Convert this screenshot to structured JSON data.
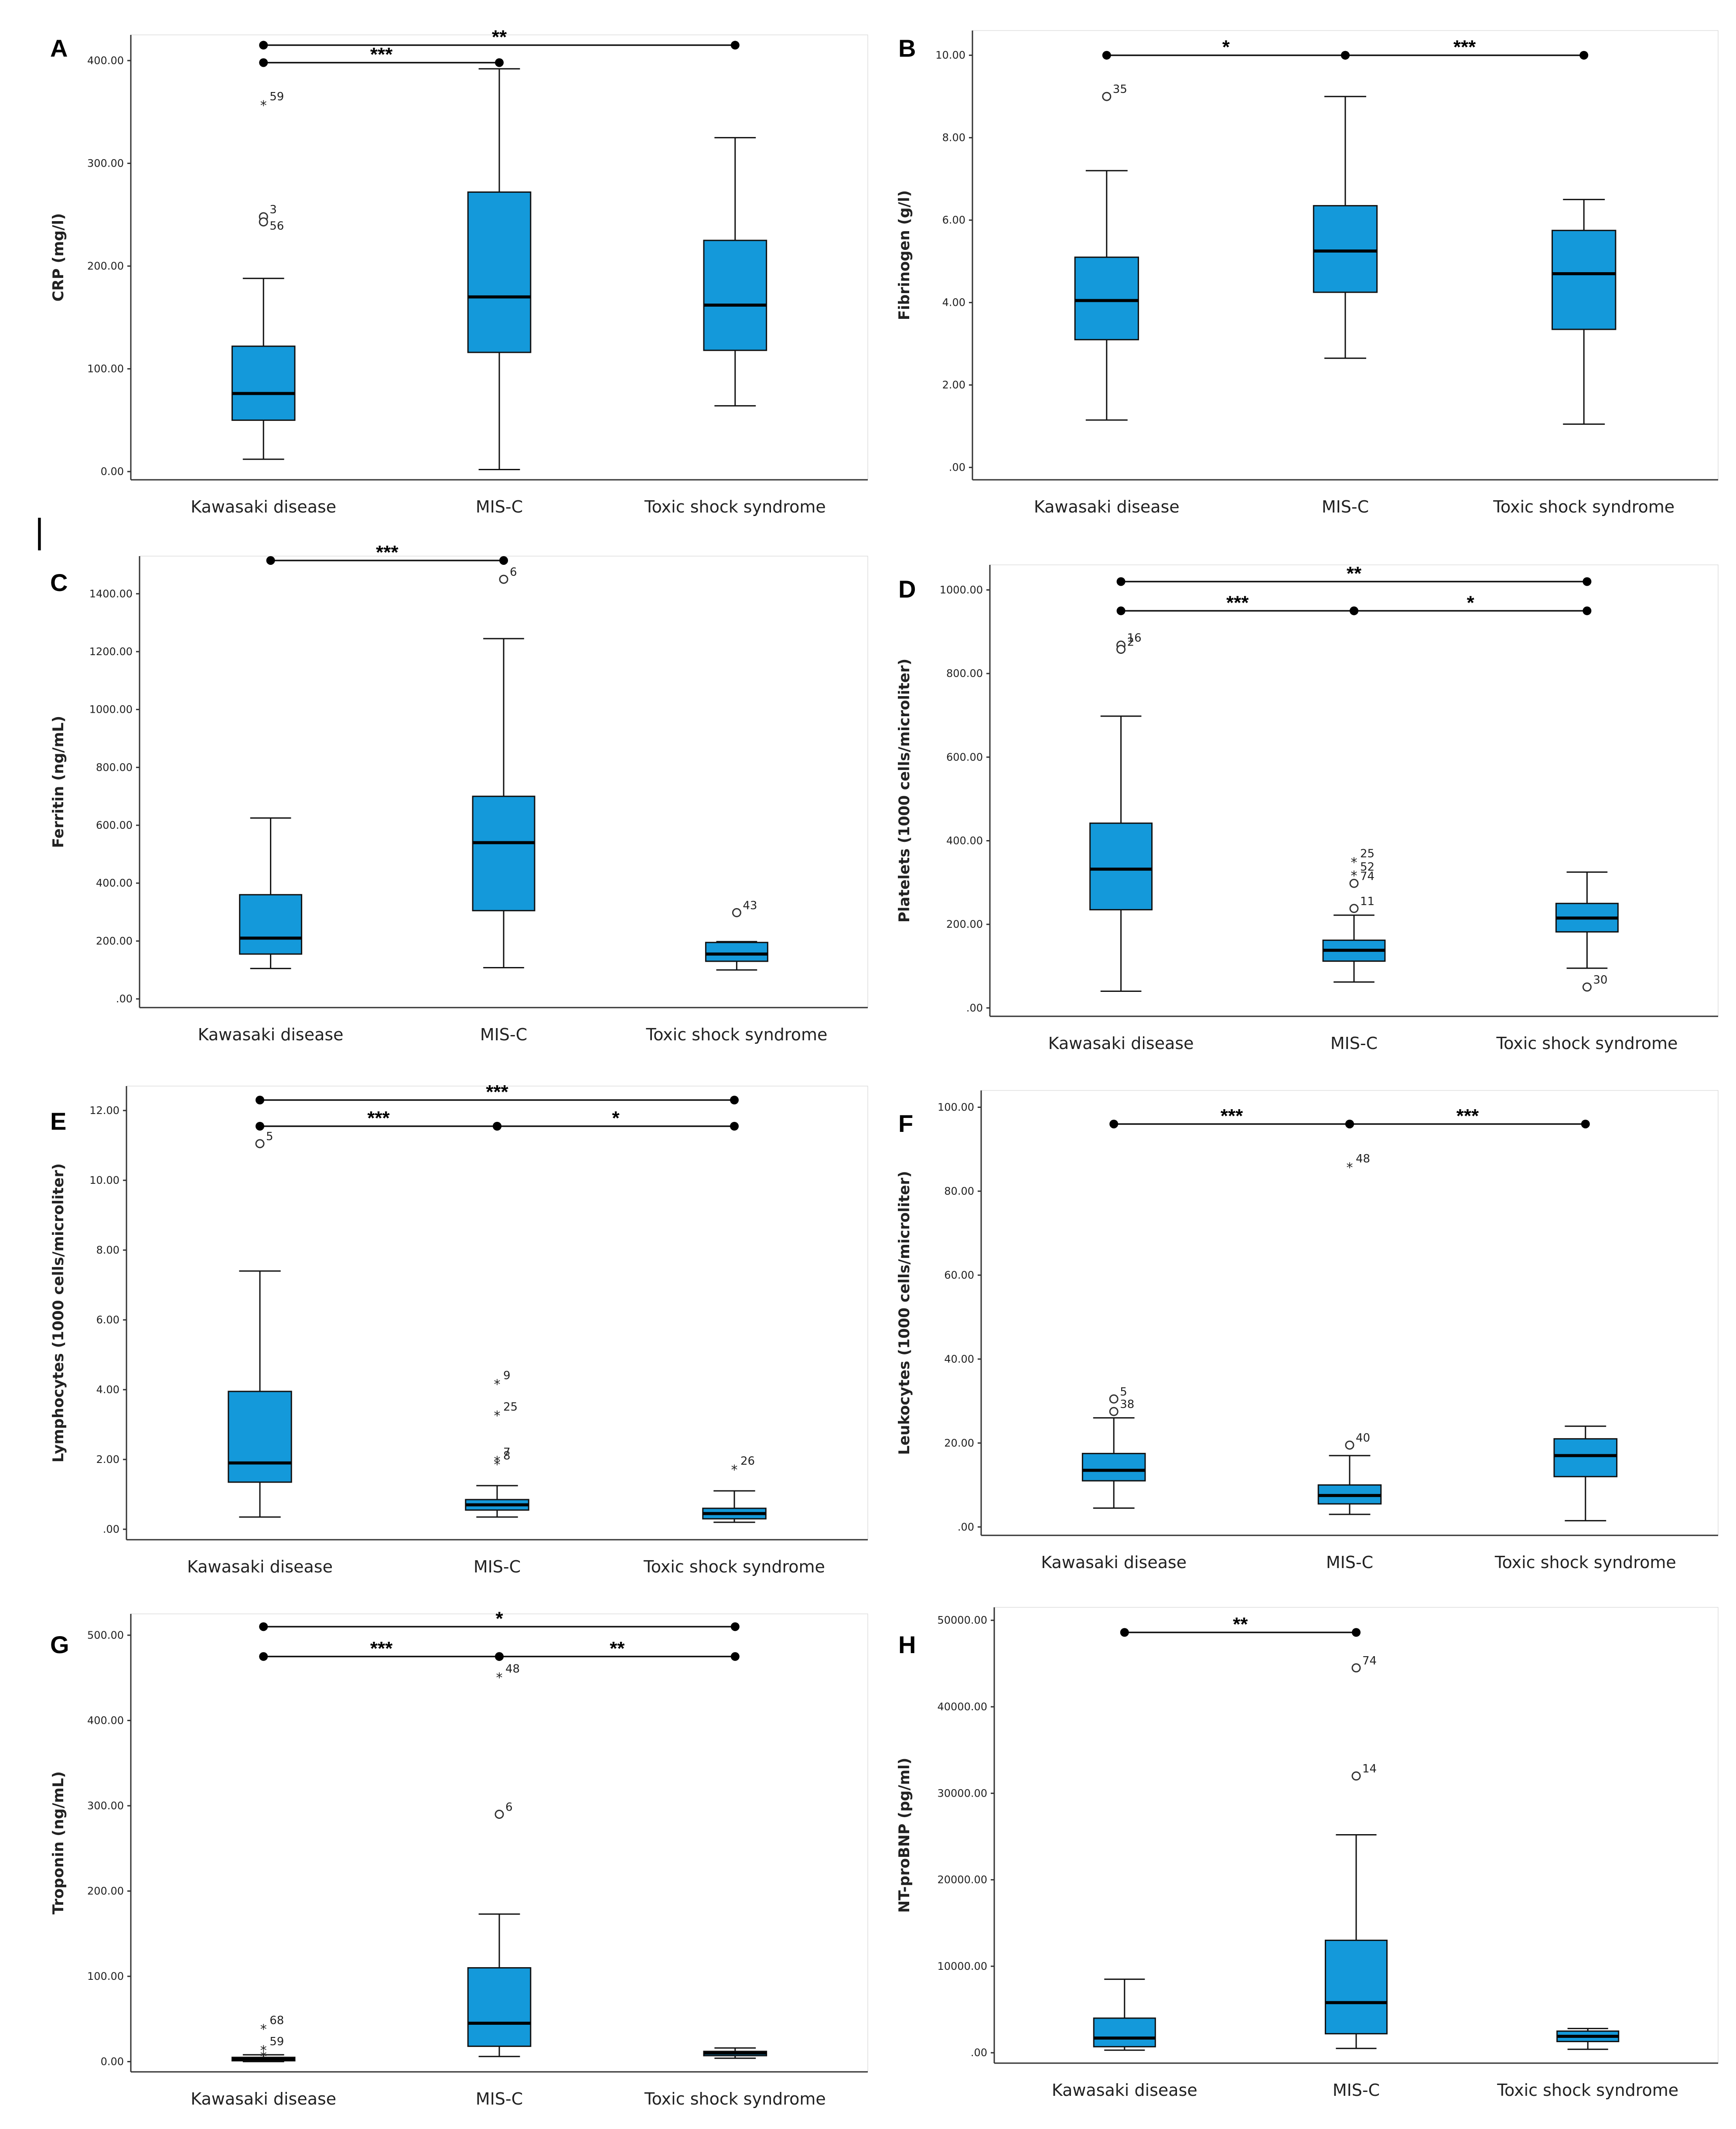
{
  "figure_marker": "|",
  "chart_data": [
    {
      "id": "A",
      "type": "box",
      "ylabel": "CRP (mg/l)",
      "categories": [
        "Kawasaki disease",
        "MIS-C",
        "Toxic shock syndrome"
      ],
      "yticks": [
        0,
        100,
        200,
        300,
        400
      ],
      "ytick_labels": [
        "0.00",
        "100.00",
        "200.00",
        "300.00",
        "400.00"
      ],
      "ylim": [
        -8,
        425
      ],
      "boxes": [
        {
          "min": 12,
          "q1": 50,
          "median": 76,
          "q3": 122,
          "max": 188
        },
        {
          "min": 2,
          "q1": 116,
          "median": 170,
          "q3": 272,
          "max": 392
        },
        {
          "min": 64,
          "q1": 118,
          "median": 162,
          "q3": 225,
          "max": 325
        }
      ],
      "outliers": [
        {
          "cat": 0,
          "value": 358,
          "shape": "star",
          "label": "59"
        },
        {
          "cat": 0,
          "value": 248,
          "shape": "circle",
          "label": "3"
        },
        {
          "cat": 0,
          "value": 243,
          "shape": "circle",
          "label": ""
        },
        {
          "cat": 0,
          "value": 232,
          "shape": "none",
          "label": "56"
        }
      ],
      "significance": [
        {
          "from": 0,
          "to": 2,
          "label": "**",
          "value": 415
        },
        {
          "from": 0,
          "to": 1,
          "label": "***",
          "value": 398
        }
      ]
    },
    {
      "id": "B",
      "type": "box",
      "ylabel": "Fibrinogen (g/l)",
      "categories": [
        "Kawasaki disease",
        "MIS-C",
        "Toxic shock syndrome"
      ],
      "yticks": [
        0,
        2,
        4,
        6,
        8,
        10
      ],
      "ytick_labels": [
        ".00",
        "2.00",
        "4.00",
        "6.00",
        "8.00",
        "10.00"
      ],
      "ylim": [
        -0.3,
        10.6
      ],
      "boxes": [
        {
          "min": 1.15,
          "q1": 3.1,
          "median": 4.05,
          "q3": 5.1,
          "max": 7.2
        },
        {
          "min": 2.65,
          "q1": 4.25,
          "median": 5.25,
          "q3": 6.35,
          "max": 9.0
        },
        {
          "min": 1.05,
          "q1": 3.35,
          "median": 4.7,
          "q3": 5.75,
          "max": 6.5
        }
      ],
      "outliers": [
        {
          "cat": 0,
          "value": 9.0,
          "shape": "circle",
          "label": "35"
        }
      ],
      "significance": [
        {
          "from": 0,
          "to": 1,
          "label": "*",
          "value": 10.0
        },
        {
          "from": 1,
          "to": 2,
          "label": "***",
          "value": 10.0
        }
      ]
    },
    {
      "id": "C",
      "type": "box",
      "ylabel": "Ferritin (ng/mL)",
      "categories": [
        "Kawasaki disease",
        "MIS-C",
        "Toxic shock syndrome"
      ],
      "yticks": [
        0,
        200,
        400,
        600,
        800,
        1000,
        1200,
        1400
      ],
      "ytick_labels": [
        ".00",
        "200.00",
        "400.00",
        "600.00",
        "800.00",
        "1000.00",
        "1200.00",
        "1400.00"
      ],
      "ylim": [
        -30,
        1530
      ],
      "boxes": [
        {
          "min": 105,
          "q1": 155,
          "median": 210,
          "q3": 360,
          "max": 625
        },
        {
          "min": 108,
          "q1": 305,
          "median": 540,
          "q3": 700,
          "max": 1245
        },
        {
          "min": 100,
          "q1": 130,
          "median": 155,
          "q3": 195,
          "max": 198
        }
      ],
      "outliers": [
        {
          "cat": 1,
          "value": 1450,
          "shape": "circle",
          "label": "6"
        },
        {
          "cat": 2,
          "value": 298,
          "shape": "circle",
          "label": "43"
        }
      ],
      "significance": [
        {
          "from": 0,
          "to": 1,
          "label": "***",
          "value": 1515
        }
      ]
    },
    {
      "id": "D",
      "type": "box",
      "ylabel": "Platelets (1000 cells/microliter)",
      "categories": [
        "Kawasaki disease",
        "MIS-C",
        "Toxic shock syndrome"
      ],
      "yticks": [
        0,
        200,
        400,
        600,
        800,
        1000
      ],
      "ytick_labels": [
        ".00",
        "200.00",
        "400.00",
        "600.00",
        "800.00",
        "1000.00"
      ],
      "ylim": [
        -20,
        1060
      ],
      "boxes": [
        {
          "min": 40,
          "q1": 235,
          "median": 332,
          "q3": 442,
          "max": 698
        },
        {
          "min": 62,
          "q1": 112,
          "median": 138,
          "q3": 162,
          "max": 222
        },
        {
          "min": 95,
          "q1": 182,
          "median": 215,
          "q3": 250,
          "max": 325
        }
      ],
      "outliers": [
        {
          "cat": 0,
          "value": 868,
          "shape": "circle",
          "label": "16"
        },
        {
          "cat": 0,
          "value": 858,
          "shape": "circle",
          "label": "2"
        },
        {
          "cat": 1,
          "value": 352,
          "shape": "star",
          "label": "25"
        },
        {
          "cat": 1,
          "value": 320,
          "shape": "star",
          "label": "52"
        },
        {
          "cat": 1,
          "value": 298,
          "shape": "circle",
          "label": "74"
        },
        {
          "cat": 1,
          "value": 238,
          "shape": "circle",
          "label": "11"
        },
        {
          "cat": 2,
          "value": 50,
          "shape": "circle",
          "label": "30"
        }
      ],
      "significance": [
        {
          "from": 0,
          "to": 2,
          "label": "**",
          "value": 1020
        },
        {
          "from": 0,
          "to": 1,
          "label": "***",
          "value": 950
        },
        {
          "from": 1,
          "to": 2,
          "label": "*",
          "value": 950
        }
      ]
    },
    {
      "id": "E",
      "type": "box",
      "ylabel": "Lymphocytes (1000 cells/microliter)",
      "categories": [
        "Kawasaki disease",
        "MIS-C",
        "Toxic shock syndrome"
      ],
      "yticks": [
        0,
        2,
        4,
        6,
        8,
        10,
        12
      ],
      "ytick_labels": [
        ".00",
        "2.00",
        "4.00",
        "6.00",
        "8.00",
        "10.00",
        "12.00"
      ],
      "ylim": [
        -0.3,
        12.7
      ],
      "boxes": [
        {
          "min": 0.35,
          "q1": 1.35,
          "median": 1.9,
          "q3": 3.95,
          "max": 7.4
        },
        {
          "min": 0.35,
          "q1": 0.55,
          "median": 0.7,
          "q3": 0.85,
          "max": 1.25
        },
        {
          "min": 0.2,
          "q1": 0.3,
          "median": 0.45,
          "q3": 0.6,
          "max": 1.1
        }
      ],
      "outliers": [
        {
          "cat": 0,
          "value": 11.05,
          "shape": "circle",
          "label": "5"
        },
        {
          "cat": 1,
          "value": 4.2,
          "shape": "star",
          "label": "9"
        },
        {
          "cat": 1,
          "value": 3.3,
          "shape": "star",
          "label": "25"
        },
        {
          "cat": 1,
          "value": 2.0,
          "shape": "star",
          "label": "7"
        },
        {
          "cat": 1,
          "value": 1.9,
          "shape": "star",
          "label": "8"
        },
        {
          "cat": 2,
          "value": 1.75,
          "shape": "star",
          "label": "26"
        }
      ],
      "significance": [
        {
          "from": 0,
          "to": 2,
          "label": "***",
          "value": 12.3
        },
        {
          "from": 0,
          "to": 1,
          "label": "***",
          "value": 11.55
        },
        {
          "from": 1,
          "to": 2,
          "label": "*",
          "value": 11.55
        }
      ]
    },
    {
      "id": "F",
      "type": "box",
      "ylabel": "Leukocytes (1000 cells/microliter)",
      "categories": [
        "Kawasaki disease",
        "MIS-C",
        "Toxic shock syndrome"
      ],
      "yticks": [
        0,
        20,
        40,
        60,
        80,
        100
      ],
      "ytick_labels": [
        ".00",
        "20.00",
        "40.00",
        "60.00",
        "80.00",
        "100.00"
      ],
      "ylim": [
        -2,
        104
      ],
      "boxes": [
        {
          "min": 4.5,
          "q1": 11,
          "median": 13.5,
          "q3": 17.5,
          "max": 26
        },
        {
          "min": 3,
          "q1": 5.5,
          "median": 7.5,
          "q3": 10,
          "max": 17
        },
        {
          "min": 1.5,
          "q1": 12,
          "median": 17,
          "q3": 21,
          "max": 24
        }
      ],
      "outliers": [
        {
          "cat": 0,
          "value": 30.5,
          "shape": "circle",
          "label": "5"
        },
        {
          "cat": 0,
          "value": 27.5,
          "shape": "circle",
          "label": "38"
        },
        {
          "cat": 1,
          "value": 86,
          "shape": "star",
          "label": "48"
        },
        {
          "cat": 1,
          "value": 19.5,
          "shape": "circle",
          "label": "40"
        }
      ],
      "significance": [
        {
          "from": 0,
          "to": 1,
          "label": "***",
          "value": 96
        },
        {
          "from": 1,
          "to": 2,
          "label": "***",
          "value": 96
        }
      ]
    },
    {
      "id": "G",
      "type": "box",
      "ylabel": "Troponin (ng/mL)",
      "categories": [
        "Kawasaki disease",
        "MIS-C",
        "Toxic shock syndrome"
      ],
      "yticks": [
        0,
        100,
        200,
        300,
        400,
        500
      ],
      "ytick_labels": [
        "0.00",
        "100.00",
        "200.00",
        "300.00",
        "400.00",
        "500.00"
      ],
      "ylim": [
        -12,
        525
      ],
      "boxes": [
        {
          "min": 0,
          "q1": 1,
          "median": 3,
          "q3": 5,
          "max": 8
        },
        {
          "min": 6,
          "q1": 18,
          "median": 45,
          "q3": 110,
          "max": 173
        },
        {
          "min": 4,
          "q1": 7,
          "median": 10,
          "q3": 12,
          "max": 16
        }
      ],
      "outliers": [
        {
          "cat": 0,
          "value": 40,
          "shape": "star",
          "label": "68"
        },
        {
          "cat": 0,
          "value": 15,
          "shape": "star",
          "label": "59"
        },
        {
          "cat": 0,
          "value": 8,
          "shape": "star",
          "label": ""
        },
        {
          "cat": 1,
          "value": 452,
          "shape": "star",
          "label": "48"
        },
        {
          "cat": 1,
          "value": 290,
          "shape": "circle",
          "label": "6"
        }
      ],
      "significance": [
        {
          "from": 0,
          "to": 2,
          "label": "*",
          "value": 510
        },
        {
          "from": 0,
          "to": 1,
          "label": "***",
          "value": 475
        },
        {
          "from": 1,
          "to": 2,
          "label": "**",
          "value": 475
        }
      ]
    },
    {
      "id": "H",
      "type": "box",
      "ylabel": "NT-proBNP (pg/ml)",
      "categories": [
        "Kawasaki disease",
        "MIS-C",
        "Toxic shock syndrome"
      ],
      "yticks": [
        0,
        10000,
        20000,
        30000,
        40000,
        50000
      ],
      "ytick_labels": [
        ".00",
        "10000.00",
        "20000.00",
        "30000.00",
        "40000.00",
        "50000.00"
      ],
      "ylim": [
        -1200,
        51500
      ],
      "boxes": [
        {
          "min": 300,
          "q1": 700,
          "median": 1700,
          "q3": 4000,
          "max": 8500
        },
        {
          "min": 500,
          "q1": 2200,
          "median": 5800,
          "q3": 13000,
          "max": 25200
        },
        {
          "min": 400,
          "q1": 1300,
          "median": 1900,
          "q3": 2500,
          "max": 2800
        }
      ],
      "outliers": [
        {
          "cat": 1,
          "value": 44500,
          "shape": "circle",
          "label": "74"
        },
        {
          "cat": 1,
          "value": 32000,
          "shape": "circle",
          "label": "14"
        }
      ],
      "significance": [
        {
          "from": 0,
          "to": 1,
          "label": "**",
          "value": 48600
        }
      ]
    }
  ],
  "colors": {
    "box": "#1499DA",
    "line": "#111111"
  }
}
